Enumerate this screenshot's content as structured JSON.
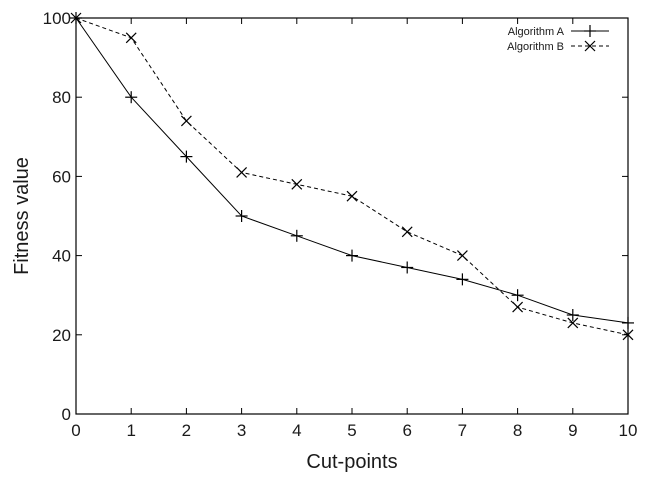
{
  "chart_data": {
    "type": "line",
    "xlabel": "Cut-points",
    "ylabel": "Fitness value",
    "xlim": [
      0,
      10
    ],
    "ylim": [
      0,
      100
    ],
    "x_ticks": [
      "0",
      "1",
      "2",
      "3",
      "4",
      "5",
      "6",
      "7",
      "8",
      "9",
      "10"
    ],
    "y_ticks": [
      "0",
      "20",
      "40",
      "60",
      "80",
      "100"
    ],
    "x": [
      0,
      1,
      2,
      3,
      4,
      5,
      6,
      7,
      8,
      9,
      10
    ],
    "grid": false,
    "legend_position": "top-right",
    "series": [
      {
        "name": "Algorithm A",
        "line_style": "solid",
        "marker": "plus",
        "values": [
          100,
          80,
          65,
          50,
          45,
          40,
          37,
          34,
          30,
          25,
          23
        ]
      },
      {
        "name": "Algorithm B",
        "line_style": "dashed",
        "marker": "cross",
        "values": [
          100,
          95,
          74,
          61,
          58,
          55,
          46,
          40,
          27,
          23,
          20
        ]
      }
    ]
  }
}
